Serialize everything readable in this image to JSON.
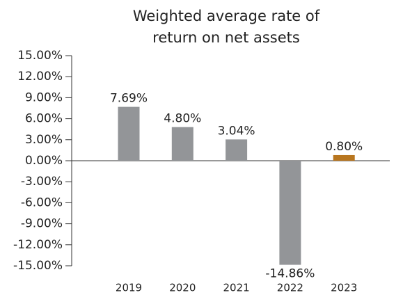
{
  "chart_data": {
    "type": "bar",
    "title": [
      "Weighted average rate of",
      "return on net assets"
    ],
    "categories": [
      "2019",
      "2020",
      "2021",
      "2022",
      "2023"
    ],
    "values": [
      7.69,
      4.8,
      3.04,
      -14.86,
      0.8
    ],
    "value_labels": [
      "7.69%",
      "4.80%",
      "3.04%",
      "-14.86%",
      "0.80%"
    ],
    "colors": [
      "#939598",
      "#939598",
      "#939598",
      "#939598",
      "#b8761f"
    ],
    "ylim": [
      -15,
      15
    ],
    "yticks": [
      {
        "value": 15,
        "label": "15.00%"
      },
      {
        "value": 12,
        "label": "12.00%"
      },
      {
        "value": 9,
        "label": "9.00%"
      },
      {
        "value": 6,
        "label": "6.00%"
      },
      {
        "value": 3,
        "label": "3.00%"
      },
      {
        "value": 0,
        "label": "0.00%"
      },
      {
        "value": -3,
        "label": "-3.00%"
      },
      {
        "value": -6,
        "label": "-6.00%"
      },
      {
        "value": -9,
        "label": "-9.00%"
      },
      {
        "value": -12,
        "label": "-12.00%"
      },
      {
        "value": -15,
        "label": "-15.00%"
      }
    ],
    "grid": false
  }
}
